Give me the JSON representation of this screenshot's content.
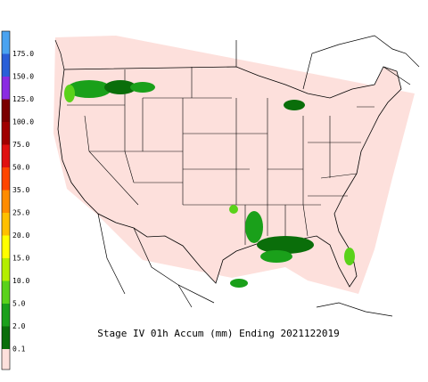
{
  "legend": {
    "items": [
      {
        "label": "175.0",
        "color": "#4aa3f0"
      },
      {
        "label": "150.0",
        "color": "#2a5fd8"
      },
      {
        "label": "125.0",
        "color": "#8a2be2"
      },
      {
        "label": "100.0",
        "color": "#7a0000"
      },
      {
        "label": "75.0",
        "color": "#a00000"
      },
      {
        "label": "50.0",
        "color": "#e01010"
      },
      {
        "label": "35.0",
        "color": "#ff4500"
      },
      {
        "label": "25.0",
        "color": "#ff8c00"
      },
      {
        "label": "20.0",
        "color": "#ffc000"
      },
      {
        "label": "15.0",
        "color": "#ffff00"
      },
      {
        "label": "10.0",
        "color": "#b4ee00"
      },
      {
        "label": "5.0",
        "color": "#5ad21a"
      },
      {
        "label": "2.0",
        "color": "#1aa01a"
      },
      {
        "label": "0.1",
        "color": "#0a6e0a"
      }
    ],
    "bottom_color": "#fde0dc"
  },
  "caption": "Stage IV 01h Accum (mm) Ending 2021122019"
}
